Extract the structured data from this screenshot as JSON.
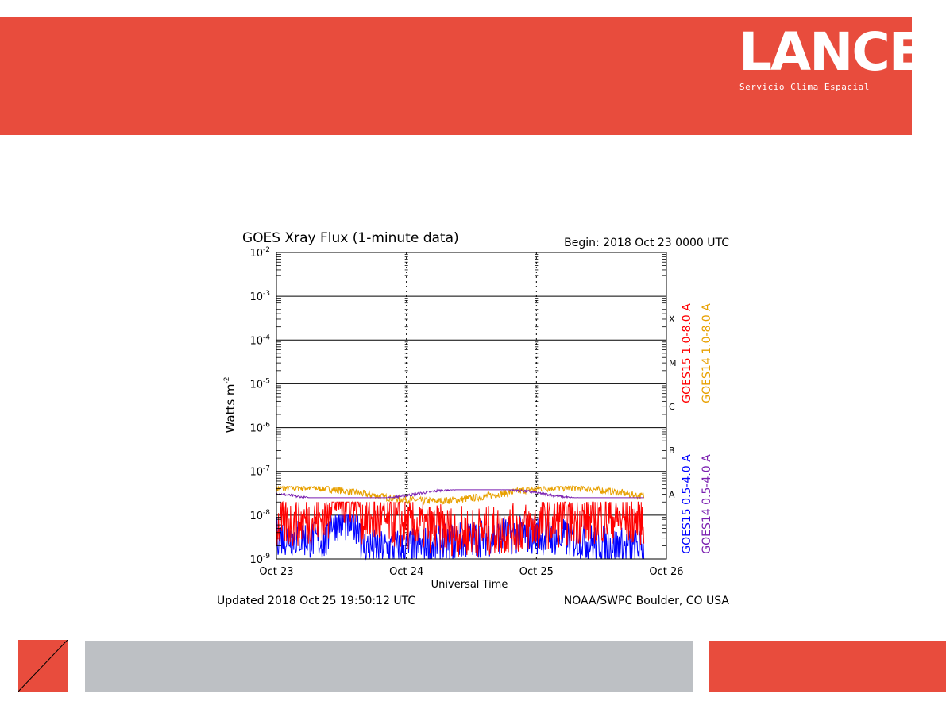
{
  "brand": {
    "name": "LANCE",
    "subtitle": "Servicio Clima Espacial",
    "color": "#e84c3d"
  },
  "footer": {
    "gray_color": "#bdc0c4"
  },
  "chart_data": {
    "type": "line",
    "title": "GOES Xray Flux (1-minute data)",
    "begin_label": "Begin:  2018 Oct 23 0000 UTC",
    "xlabel": "Universal Time",
    "ylabel": "Watts m",
    "ylabel_exponent": "-2",
    "y_scale": "log",
    "ylim": [
      1e-09,
      0.01
    ],
    "xlim_days": [
      "Oct 23",
      "Oct 26"
    ],
    "x_ticks": [
      "Oct 23",
      "Oct 24",
      "Oct 25",
      "Oct 26"
    ],
    "y_ticks": [
      {
        "base": "10",
        "exp": "-9"
      },
      {
        "base": "10",
        "exp": "-8"
      },
      {
        "base": "10",
        "exp": "-7"
      },
      {
        "base": "10",
        "exp": "-6"
      },
      {
        "base": "10",
        "exp": "-5"
      },
      {
        "base": "10",
        "exp": "-4"
      },
      {
        "base": "10",
        "exp": "-3"
      },
      {
        "base": "10",
        "exp": "-2"
      }
    ],
    "flare_classes": [
      {
        "label": "A",
        "flux": 1e-08
      },
      {
        "label": "B",
        "flux": 1e-07
      },
      {
        "label": "C",
        "flux": 1e-06
      },
      {
        "label": "M",
        "flux": 1e-05
      },
      {
        "label": "X",
        "flux": 0.0001
      }
    ],
    "grid": true,
    "data_end": "Oct 25 19:50",
    "series": [
      {
        "name": "GOES15 1.0-8.0 A",
        "color": "#ff0000",
        "approx_level": 6e-09,
        "range": [
          1e-09,
          2e-08
        ]
      },
      {
        "name": "GOES14 1.0-8.0 A",
        "color": "#e8a000",
        "approx_level": 3e-08,
        "range": [
          1.5e-08,
          4.5e-08
        ]
      },
      {
        "name": "GOES15 0.5-4.0 A",
        "color": "#0000ff",
        "approx_level": 2.5e-09,
        "range": [
          1e-09,
          1e-08
        ]
      },
      {
        "name": "GOES14 0.5-4.0 A",
        "color": "#7a1fb0",
        "approx_level": 3e-08,
        "range": [
          2.5e-08,
          3.8e-08
        ]
      }
    ],
    "updated": "Updated 2018 Oct 25 19:50:12 UTC",
    "source": "NOAA/SWPC Boulder, CO USA"
  }
}
